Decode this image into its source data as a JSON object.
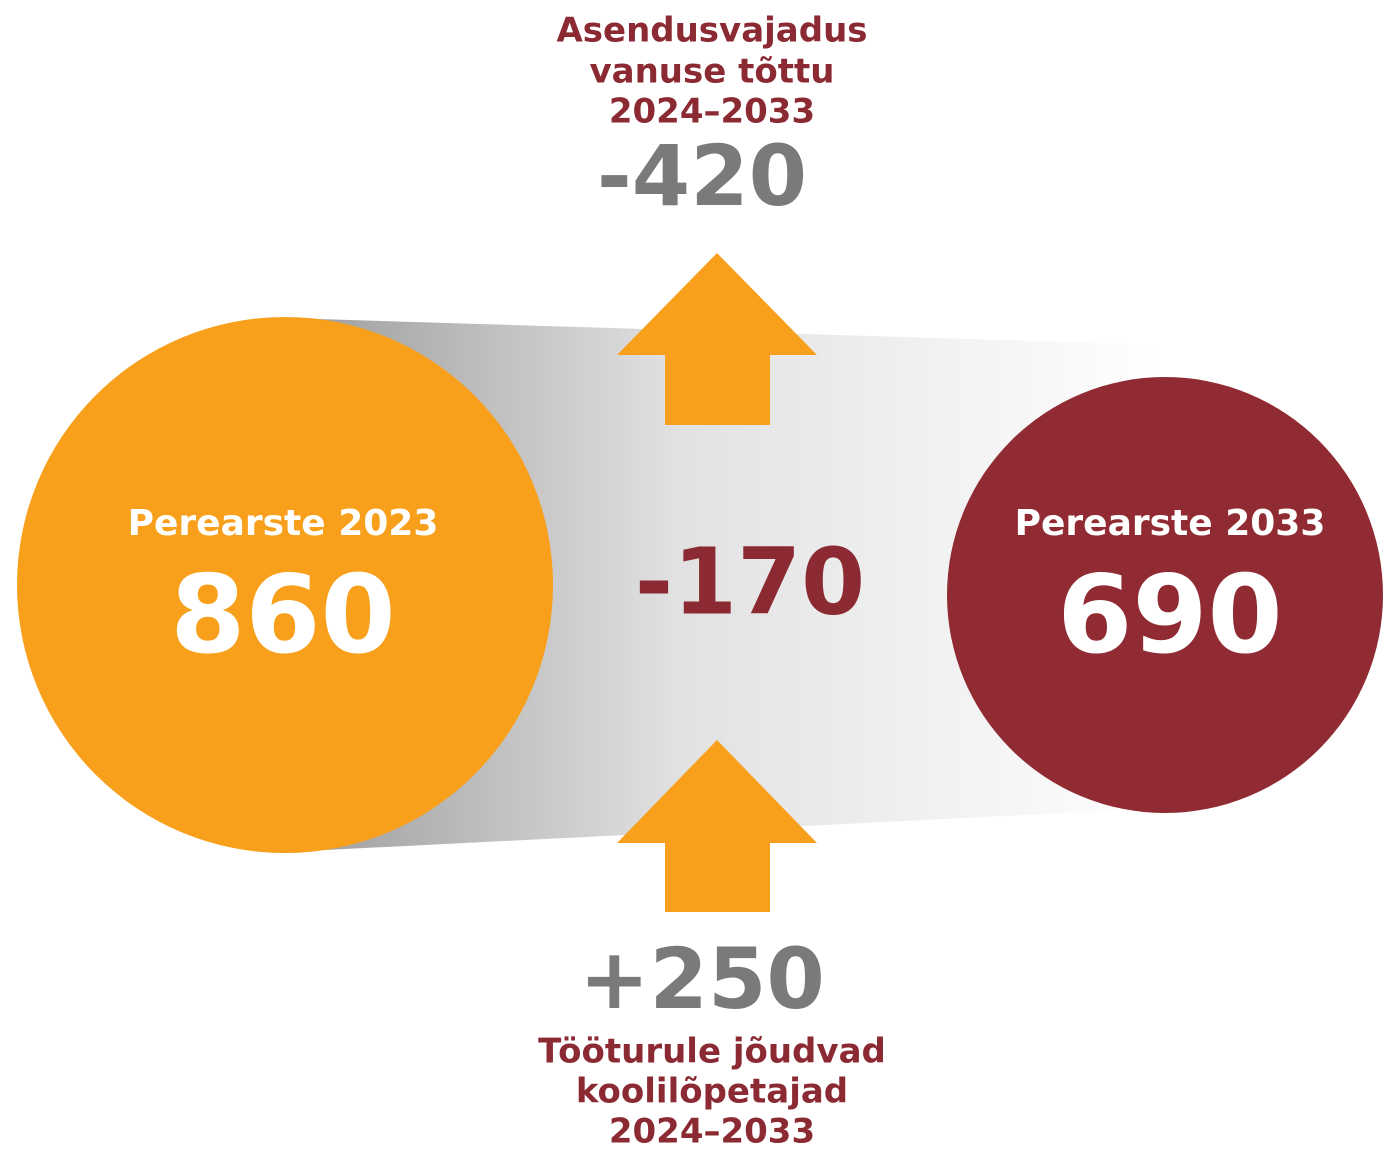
{
  "left": {
    "label": "Perearste 2023",
    "value": "860"
  },
  "right": {
    "label": "Perearste 2033",
    "value": "690"
  },
  "center": {
    "value": "-170"
  },
  "top": {
    "label_lines": [
      "Asendusvajadus",
      "vanuse tõttu",
      "2024–2033"
    ],
    "value": "-420"
  },
  "bottom": {
    "value": "+250",
    "label_lines": [
      "Tööturule jõudvad",
      "koolilõpetajad",
      "2024–2033"
    ]
  }
}
